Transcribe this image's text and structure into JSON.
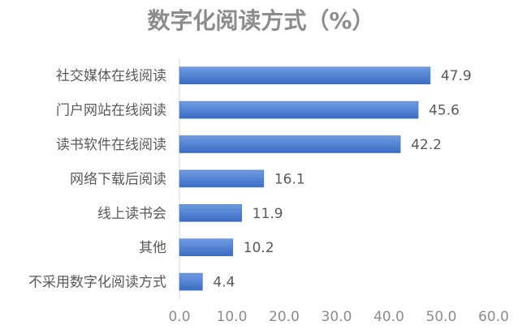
{
  "chart_data": {
    "type": "bar",
    "orientation": "horizontal",
    "title": "数字化阅读方式（%）",
    "categories": [
      "社交媒体在线阅读",
      "门户网站在线阅读",
      "读书软件在线阅读",
      "网络下载后阅读",
      "线上读书会",
      "其他",
      "不采用数字化阅读方式"
    ],
    "values": [
      47.9,
      45.6,
      42.2,
      16.1,
      11.9,
      10.2,
      4.4
    ],
    "value_labels": [
      "47.9",
      "45.6",
      "42.2",
      "16.1",
      "11.9",
      "10.2",
      "4.4"
    ],
    "xlim": [
      0,
      60
    ],
    "xticks": [
      "0.0",
      "10.0",
      "20.0",
      "30.0",
      "40.0",
      "50.0",
      "60.0"
    ],
    "xlabel": "",
    "ylabel": "",
    "grid": false,
    "legend": "none",
    "bar_color_top": "#6f9be0",
    "bar_color_bottom": "#3a6cc4"
  }
}
